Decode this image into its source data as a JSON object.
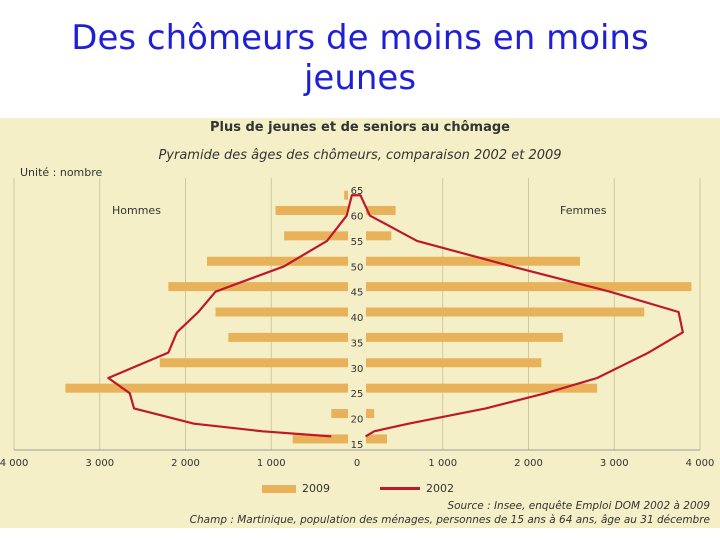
{
  "slide": {
    "title_line1": "Des chômeurs de moins en moins",
    "title_line2": "jeunes"
  },
  "figure": {
    "unit_label": "Unité : nombre",
    "men_label": "Hommes",
    "women_label": "Femmes",
    "source": "Source : Insee, enquête Emploi DOM 2002 à 2009",
    "scope": "Champ : Martinique, population des ménages, personnes de 15 ans à 64 ans, âge au 31 décembre"
  },
  "chart_data": {
    "type": "bar",
    "title": "Plus de jeunes et de seniors au chômage",
    "subtitle": "Pyramide des âges des chômeurs, comparaison 2002 et 2009",
    "ylabel_ticks": [
      "65",
      "60",
      "55",
      "50",
      "45",
      "40",
      "35",
      "30",
      "25",
      "20",
      "15"
    ],
    "xticks": [
      {
        "value": -4000,
        "label": "4 000"
      },
      {
        "value": -3000,
        "label": "3 000"
      },
      {
        "value": -2000,
        "label": "2 000"
      },
      {
        "value": -1000,
        "label": "1 000"
      },
      {
        "value": 0,
        "label": "0"
      },
      {
        "value": 1000,
        "label": "1 000"
      },
      {
        "value": 2000,
        "label": "2 000"
      },
      {
        "value": 3000,
        "label": "3 000"
      },
      {
        "value": 4000,
        "label": "4 000"
      }
    ],
    "xlim": [
      -4000,
      4000
    ],
    "ylim": [
      15,
      67
    ],
    "grid": true,
    "series_2009": {
      "name": "2009",
      "color": "#e8b25a",
      "age_groups": [
        {
          "age": 16,
          "men": 750,
          "women": 350
        },
        {
          "age": 21,
          "men": 300,
          "women": 200
        },
        {
          "age": 26,
          "men": 3400,
          "women": 2800
        },
        {
          "age": 31,
          "men": 2300,
          "women": 2150
        },
        {
          "age": 36,
          "men": 1500,
          "women": 2400
        },
        {
          "age": 41,
          "men": 1650,
          "women": 3350
        },
        {
          "age": 46,
          "men": 2200,
          "women": 3900
        },
        {
          "age": 51,
          "men": 1750,
          "women": 2600
        },
        {
          "age": 56,
          "men": 850,
          "women": 400
        },
        {
          "age": 61,
          "men": 950,
          "women": 450
        },
        {
          "age": 64,
          "men": 150,
          "women": 50
        }
      ]
    },
    "series_2002": {
      "name": "2002",
      "color": "#c0182a",
      "points": [
        {
          "age": 16.5,
          "men": 300,
          "women": 100
        },
        {
          "age": 17.5,
          "men": 1100,
          "women": 200
        },
        {
          "age": 19,
          "men": 1900,
          "women": 600
        },
        {
          "age": 22,
          "men": 2600,
          "women": 1500
        },
        {
          "age": 25,
          "men": 2650,
          "women": 2200
        },
        {
          "age": 28,
          "men": 2900,
          "women": 2800
        },
        {
          "age": 33,
          "men": 2200,
          "women": 3400
        },
        {
          "age": 37,
          "men": 2100,
          "women": 3800
        },
        {
          "age": 41,
          "men": 1850,
          "women": 3750
        },
        {
          "age": 45,
          "men": 1650,
          "women": 2950
        },
        {
          "age": 50,
          "men": 850,
          "women": 1800
        },
        {
          "age": 55,
          "men": 350,
          "women": 700
        },
        {
          "age": 60,
          "men": 120,
          "women": 150
        },
        {
          "age": 64,
          "men": 60,
          "women": 40
        }
      ]
    },
    "legend": [
      "2009",
      "2002"
    ],
    "legend_placement": "bottom"
  }
}
